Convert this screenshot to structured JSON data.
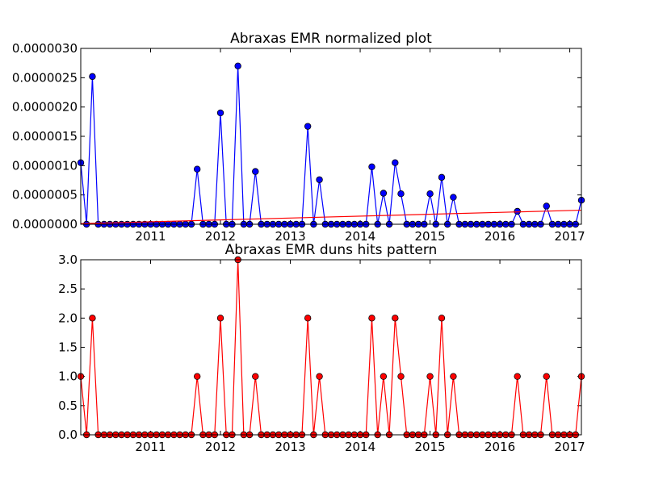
{
  "chart_data": [
    {
      "type": "line",
      "title": "Abraxas EMR normalized plot",
      "xlabel": "",
      "ylabel": "",
      "x_tick_labels": [
        "2011",
        "2012",
        "2013",
        "2014",
        "2015",
        "2016",
        "2017"
      ],
      "y_tick_labels": [
        "0.0000000",
        "0.0000005",
        "0.0000010",
        "0.0000015",
        "0.0000020",
        "0.0000025",
        "0.0000030"
      ],
      "xlim": [
        "2010-01",
        "2017-03"
      ],
      "ylim": [
        0,
        3e-06
      ],
      "series": [
        {
          "color": "#0000ff",
          "marker": "circle",
          "values": [
            1.05e-06,
            0,
            2.52e-06,
            0,
            0,
            0,
            0,
            0,
            0,
            0,
            0,
            0,
            0,
            0,
            0,
            0,
            0,
            0,
            0,
            0,
            9.4e-07,
            0,
            0,
            0,
            1.9e-06,
            0,
            0,
            2.7e-06,
            0,
            0,
            9e-07,
            0,
            0,
            0,
            0,
            0,
            0,
            0,
            0,
            1.67e-06,
            0,
            7.6e-07,
            0,
            0,
            0,
            0,
            0,
            0,
            0,
            0,
            9.8e-07,
            0,
            5.3e-07,
            0,
            1.05e-06,
            5.2e-07,
            0,
            0,
            0,
            0,
            5.2e-07,
            0,
            8e-07,
            0,
            4.6e-07,
            0,
            0,
            0,
            0,
            0,
            0,
            0,
            0,
            0,
            0,
            2.2e-07,
            0,
            0,
            0,
            0,
            3.1e-07,
            0,
            0,
            0,
            0,
            0,
            4.1e-07
          ]
        },
        {
          "color": "#ff0000",
          "marker": "none",
          "values": [
            1e-08,
            2.4e-07
          ]
        }
      ]
    },
    {
      "type": "line",
      "title": "Abraxas EMR duns hits pattern",
      "xlabel": "",
      "ylabel": "",
      "x_tick_labels": [
        "2011",
        "2012",
        "2013",
        "2014",
        "2015",
        "2016",
        "2017"
      ],
      "y_tick_labels": [
        "0.0",
        "0.5",
        "1.0",
        "1.5",
        "2.0",
        "2.5",
        "3.0"
      ],
      "xlim": [
        "2010-01",
        "2017-03"
      ],
      "ylim": [
        0,
        3
      ],
      "series": [
        {
          "color": "#ff0000",
          "marker": "circle",
          "values": [
            1,
            0,
            2,
            0,
            0,
            0,
            0,
            0,
            0,
            0,
            0,
            0,
            0,
            0,
            0,
            0,
            0,
            0,
            0,
            0,
            1,
            0,
            0,
            0,
            2,
            0,
            0,
            3,
            0,
            0,
            1,
            0,
            0,
            0,
            0,
            0,
            0,
            0,
            0,
            2,
            0,
            1,
            0,
            0,
            0,
            0,
            0,
            0,
            0,
            0,
            2,
            0,
            1,
            0,
            2,
            1,
            0,
            0,
            0,
            0,
            1,
            0,
            2,
            0,
            1,
            0,
            0,
            0,
            0,
            0,
            0,
            0,
            0,
            0,
            0,
            1,
            0,
            0,
            0,
            0,
            1,
            0,
            0,
            0,
            0,
            0,
            1
          ]
        }
      ]
    }
  ]
}
